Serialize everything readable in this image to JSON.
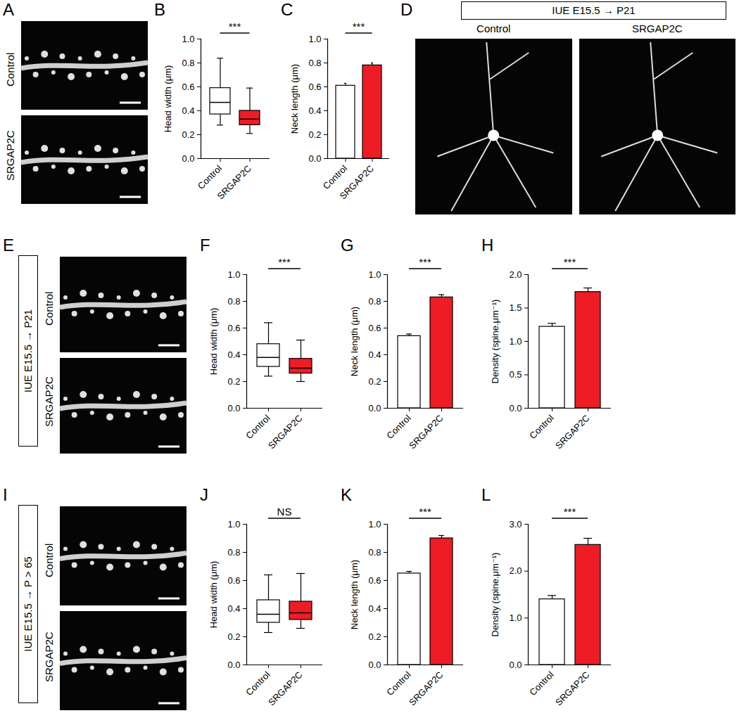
{
  "chart_data": [
    {
      "type": "image",
      "title": "A",
      "labels": [
        "Control",
        "SRGAP2C"
      ]
    },
    {
      "type": "box",
      "title": "B",
      "categories": [
        "Control",
        "SRGAP2C"
      ],
      "colors": [
        "#ffffff",
        "#ee1c24"
      ],
      "y_label": "Head width (μm)",
      "ylim": [
        0,
        1
      ],
      "yticks": [
        {
          "value": 0,
          "label": "0.0"
        },
        0.2,
        0.4,
        0.6,
        0.8,
        {
          "value": 1,
          "label": "1.0"
        }
      ],
      "min": [
        0.28,
        0.21
      ],
      "q1": [
        0.37,
        0.28
      ],
      "median": [
        0.47,
        0.33
      ],
      "q3": [
        0.59,
        0.4
      ],
      "max": [
        0.84,
        0.59
      ],
      "annotations": [
        "***"
      ]
    },
    {
      "type": "bar",
      "title": "C",
      "categories": [
        "Control",
        "SRGAP2C"
      ],
      "colors": [
        "#ffffff",
        "#ee1c24"
      ],
      "y_label": "Neck length (μm)",
      "ylim": [
        0,
        1
      ],
      "yticks": [
        {
          "value": 0,
          "label": "0.0"
        },
        0.2,
        0.4,
        0.6,
        0.8,
        {
          "value": 1,
          "label": "1.0"
        }
      ],
      "values": [
        0.61,
        0.78
      ],
      "errors": [
        0.02,
        0.02
      ],
      "annotations": [
        "***"
      ]
    },
    {
      "type": "image",
      "title": "D",
      "header": "IUE E15.5 → P21",
      "labels": [
        "Control",
        "SRGAP2C"
      ]
    },
    {
      "type": "image",
      "title": "E",
      "side_label": "IUE E15.5 → P21",
      "labels": [
        "Control",
        "SRGAP2C"
      ]
    },
    {
      "type": "box",
      "title": "F",
      "categories": [
        "Control",
        "SRGAP2C"
      ],
      "colors": [
        "#ffffff",
        "#ee1c24"
      ],
      "y_label": "Head width (μm)",
      "ylim": [
        0,
        1
      ],
      "yticks": [
        {
          "value": 0,
          "label": "0.0"
        },
        0.2,
        0.4,
        0.6,
        0.8,
        {
          "value": 1,
          "label": "1.0"
        }
      ],
      "min": [
        0.24,
        0.2
      ],
      "q1": [
        0.31,
        0.26
      ],
      "median": [
        0.38,
        0.3
      ],
      "q3": [
        0.48,
        0.37
      ],
      "max": [
        0.64,
        0.51
      ],
      "annotations": [
        "***"
      ]
    },
    {
      "type": "bar",
      "title": "G",
      "categories": [
        "Control",
        "SRGAP2C"
      ],
      "colors": [
        "#ffffff",
        "#ee1c24"
      ],
      "y_label": "Neck length (μm)",
      "ylim": [
        0,
        1
      ],
      "yticks": [
        {
          "value": 0,
          "label": "0.0"
        },
        0.2,
        0.4,
        0.6,
        0.8,
        {
          "value": 1,
          "label": "1.0"
        }
      ],
      "values": [
        0.54,
        0.83
      ],
      "errors": [
        0.015,
        0.02
      ],
      "annotations": [
        "***"
      ]
    },
    {
      "type": "bar",
      "title": "H",
      "categories": [
        "Control",
        "SRGAP2C"
      ],
      "colors": [
        "#ffffff",
        "#ee1c24"
      ],
      "y_label": "Density (spine.μm⁻¹)",
      "ylim": [
        0,
        2
      ],
      "yticks": [
        {
          "value": 0,
          "label": "0.0"
        },
        0.5,
        {
          "value": 1,
          "label": "1.0"
        },
        1.5,
        {
          "value": 2,
          "label": "2.0"
        }
      ],
      "values": [
        1.22,
        1.74
      ],
      "errors": [
        0.05,
        0.06
      ],
      "annotations": [
        "***"
      ]
    },
    {
      "type": "image",
      "title": "I",
      "side_label": "IUE E15.5 → P > 65",
      "labels": [
        "Control",
        "SRGAP2C"
      ]
    },
    {
      "type": "box",
      "title": "J",
      "categories": [
        "Control",
        "SRGAP2C"
      ],
      "colors": [
        "#ffffff",
        "#ee1c24"
      ],
      "y_label": "Head width (μm)",
      "ylim": [
        0,
        1
      ],
      "yticks": [
        {
          "value": 0,
          "label": "0.0"
        },
        0.2,
        0.4,
        0.6,
        0.8,
        {
          "value": 1,
          "label": "1.0"
        }
      ],
      "min": [
        0.23,
        0.26
      ],
      "q1": [
        0.3,
        0.32
      ],
      "median": [
        0.36,
        0.37
      ],
      "q3": [
        0.46,
        0.45
      ],
      "max": [
        0.64,
        0.65
      ],
      "annotations": [
        "NS"
      ]
    },
    {
      "type": "bar",
      "title": "K",
      "categories": [
        "Control",
        "SRGAP2C"
      ],
      "colors": [
        "#ffffff",
        "#ee1c24"
      ],
      "y_label": "Neck length (μm)",
      "ylim": [
        0,
        1
      ],
      "yticks": [
        {
          "value": 0,
          "label": "0.0"
        },
        0.2,
        0.4,
        0.6,
        0.8,
        {
          "value": 1,
          "label": "1.0"
        }
      ],
      "values": [
        0.65,
        0.9
      ],
      "errors": [
        0.015,
        0.02
      ],
      "annotations": [
        "***"
      ]
    },
    {
      "type": "bar",
      "title": "L",
      "categories": [
        "Control",
        "SRGAP2C"
      ],
      "colors": [
        "#ffffff",
        "#ee1c24"
      ],
      "y_label": "Density (spine.μm⁻¹)",
      "ylim": [
        0,
        3
      ],
      "yticks": [
        {
          "value": 0,
          "label": "0.0"
        },
        {
          "value": 1,
          "label": "1.0"
        },
        {
          "value": 2,
          "label": "2.0"
        },
        {
          "value": 3,
          "label": "3.0"
        }
      ],
      "values": [
        1.4,
        2.56
      ],
      "errors": [
        0.08,
        0.14
      ],
      "annotations": [
        "***"
      ]
    }
  ]
}
